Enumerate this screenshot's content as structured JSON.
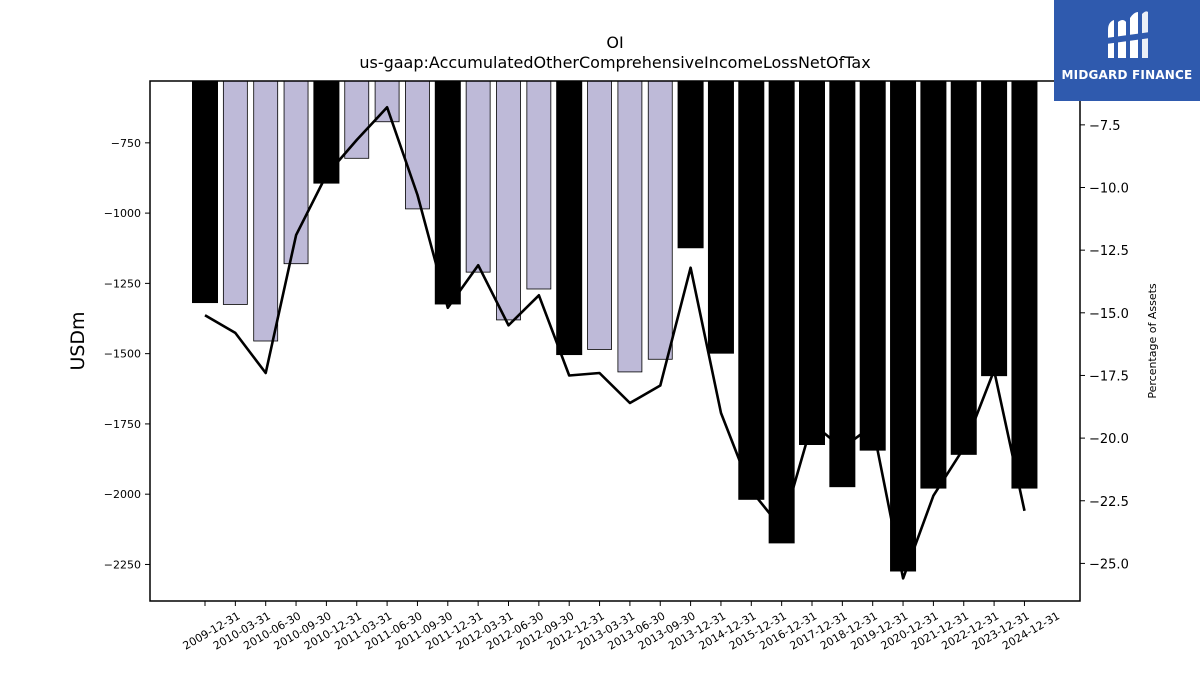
{
  "logo": {
    "text": "MIDGARD FINANCE",
    "colors": {
      "background": "#2f5aae",
      "foreground": "#ffffff"
    }
  },
  "chart_data": {
    "type": "bar",
    "title": "OI",
    "subtitle": "us-gaap:AccumulatedOtherComprehensiveIncomeLossNetOfTax",
    "ylabel": "USDm",
    "y2label": "Percentage of Assets",
    "ylim": [
      -2380,
      -530
    ],
    "y2lim": [
      -26.5,
      -5.75
    ],
    "yticks": [
      -750,
      -1000,
      -1250,
      -1500,
      -1750,
      -2000,
      -2250
    ],
    "y2ticks": [
      -7.5,
      -10.0,
      -12.5,
      -15.0,
      -17.5,
      -20.0,
      -22.5,
      -25.0
    ],
    "categories": [
      "2009-12-31",
      "2010-03-31",
      "2010-06-30",
      "2010-09-30",
      "2010-12-31",
      "2011-03-31",
      "2011-06-30",
      "2011-09-30",
      "2011-12-31",
      "2012-03-31",
      "2012-06-30",
      "2012-09-30",
      "2012-12-31",
      "2013-03-31",
      "2013-06-30",
      "2013-09-30",
      "2013-12-31",
      "2014-12-31",
      "2015-12-31",
      "2016-12-31",
      "2017-12-31",
      "2018-12-31",
      "2019-12-31",
      "2020-12-31",
      "2021-12-31",
      "2022-12-31",
      "2023-12-31",
      "2024-12-31"
    ],
    "values": [
      -1320,
      -1325,
      -1455,
      -1180,
      -895,
      -805,
      -675,
      -985,
      -1325,
      -1210,
      -1380,
      -1270,
      -1505,
      -1485,
      -1565,
      -1520,
      -1125,
      -1500,
      -2020,
      -2175,
      -1825,
      -1975,
      -1845,
      -2275,
      -1980,
      -1860,
      -1580,
      -1980
    ],
    "bar_kind": [
      "annual",
      "quarterly",
      "quarterly",
      "quarterly",
      "annual",
      "quarterly",
      "quarterly",
      "quarterly",
      "annual",
      "quarterly",
      "quarterly",
      "quarterly",
      "annual",
      "quarterly",
      "quarterly",
      "quarterly",
      "annual",
      "annual",
      "annual",
      "annual",
      "annual",
      "annual",
      "annual",
      "annual",
      "annual",
      "annual",
      "annual",
      "annual"
    ],
    "line_values": [
      -15.1,
      -15.8,
      -17.4,
      -11.9,
      -9.5,
      -8.1,
      -6.8,
      -10.3,
      -14.8,
      -13.1,
      -15.5,
      -14.3,
      -17.5,
      -17.4,
      -18.6,
      -17.9,
      -13.2,
      -19.0,
      -22.1,
      -23.6,
      -19.4,
      -20.4,
      -19.5,
      -25.6,
      -22.3,
      -20.4,
      -17.3,
      -22.9
    ],
    "colors": {
      "annual": "#000000",
      "quarterly": "#bebad8",
      "line": "#000000"
    },
    "grid": false,
    "legend": "none"
  }
}
